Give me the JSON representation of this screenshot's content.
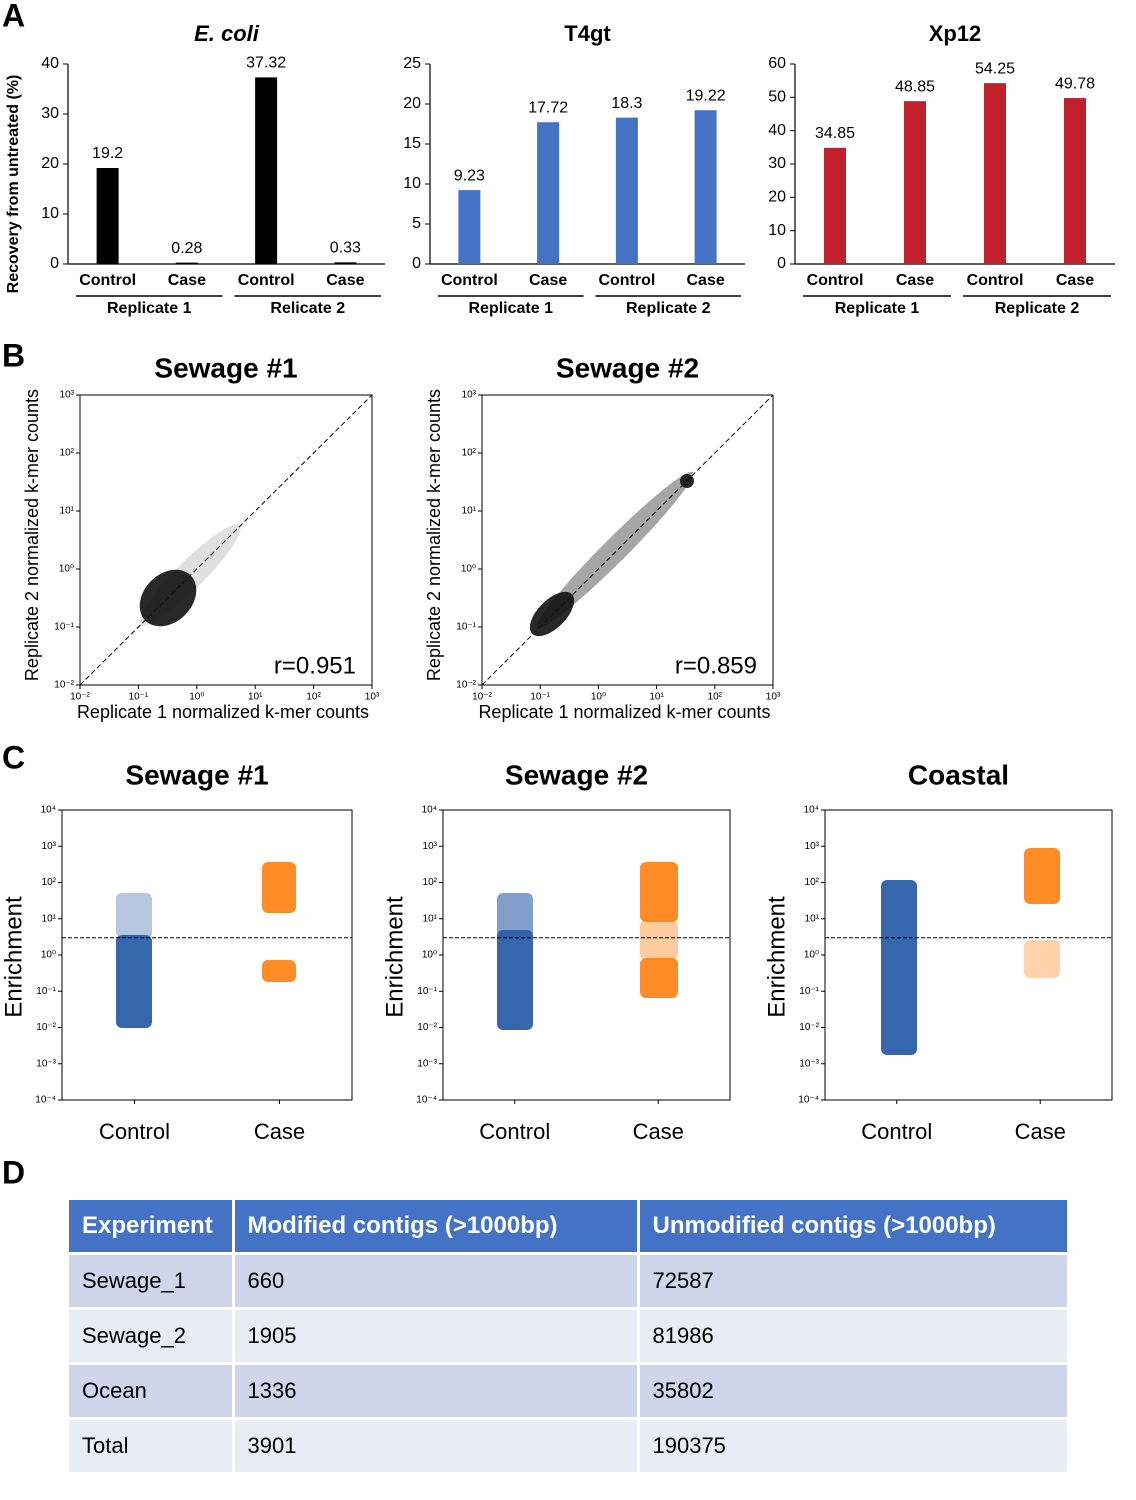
{
  "panel_labels": [
    "A",
    "B",
    "C",
    "D"
  ],
  "chart_data": [
    {
      "type": "bar",
      "title": "E. coli",
      "ylabel": "Recovery from untreated (%)",
      "categories": [
        "Control",
        "Case",
        "Control",
        "Case"
      ],
      "groups": [
        "Replicate 1",
        "Relicate 2"
      ],
      "values": [
        19.2,
        0.28,
        37.32,
        0.33
      ],
      "color": "#000000",
      "ylim": [
        0,
        40
      ],
      "yticks": [
        0,
        10,
        20,
        30,
        40
      ]
    },
    {
      "type": "bar",
      "title": "T4gt",
      "categories": [
        "Control",
        "Case",
        "Control",
        "Case"
      ],
      "groups": [
        "Replicate 1",
        "Replicate 2"
      ],
      "values": [
        9.23,
        17.72,
        18.3,
        19.22
      ],
      "color": "#4472c4",
      "ylim": [
        0,
        25
      ],
      "yticks": [
        0,
        5,
        10,
        15,
        20,
        25
      ]
    },
    {
      "type": "bar",
      "title": "Xp12",
      "categories": [
        "Control",
        "Case",
        "Control",
        "Case"
      ],
      "groups": [
        "Replicate 1",
        "Replicate 2"
      ],
      "values": [
        34.85,
        48.85,
        54.25,
        49.78
      ],
      "color": "#c0202a",
      "ylim": [
        0,
        60
      ],
      "yticks": [
        0,
        10,
        20,
        30,
        40,
        50,
        60
      ]
    },
    {
      "type": "scatter",
      "title": "Sewage #1",
      "xlabel": "Replicate 1 normalized k-mer counts",
      "ylabel": "Replicate 2 normalized k-mer counts",
      "log": true,
      "annotation": "r=0.951",
      "xlim": [
        0.01,
        1000
      ],
      "ylim": [
        0.01,
        1000
      ],
      "xticks": [
        {
          "value": 0.01,
          "label": "10⁻²"
        },
        {
          "value": 0.1,
          "label": "10⁻¹"
        },
        {
          "value": 1,
          "label": "10⁰"
        },
        {
          "value": 10,
          "label": "10¹"
        },
        {
          "value": 100,
          "label": "10²"
        },
        {
          "value": 1000,
          "label": "10³"
        }
      ],
      "yticks": [
        {
          "value": 0.01,
          "label": "10⁻²"
        },
        {
          "value": 0.1,
          "label": "10⁻¹"
        },
        {
          "value": 1,
          "label": "10⁰"
        },
        {
          "value": 10,
          "label": "10¹"
        },
        {
          "value": 100,
          "label": "10²"
        },
        {
          "value": 1000,
          "label": "10³"
        }
      ]
    },
    {
      "type": "scatter",
      "title": "Sewage #2",
      "xlabel": "Replicate 1 normalized k-mer counts",
      "ylabel": "Replicate 2 normalized k-mer counts",
      "log": true,
      "annotation": "r=0.859",
      "xlim": [
        0.01,
        1000
      ],
      "ylim": [
        0.01,
        1000
      ],
      "xticks": [
        {
          "value": 0.01,
          "label": "10⁻²"
        },
        {
          "value": 0.1,
          "label": "10⁻¹"
        },
        {
          "value": 1,
          "label": "10⁰"
        },
        {
          "value": 10,
          "label": "10¹"
        },
        {
          "value": 100,
          "label": "10²"
        },
        {
          "value": 1000,
          "label": "10³"
        }
      ],
      "yticks": [
        {
          "value": 0.01,
          "label": "10⁻²"
        },
        {
          "value": 0.1,
          "label": "10⁻¹"
        },
        {
          "value": 1,
          "label": "10⁰"
        },
        {
          "value": 10,
          "label": "10¹"
        },
        {
          "value": 100,
          "label": "10²"
        },
        {
          "value": 1000,
          "label": "10³"
        }
      ]
    },
    {
      "type": "strip",
      "title": "Sewage #1",
      "ylabel": "Enrichment",
      "categories": [
        "Control",
        "Case"
      ],
      "log": true,
      "threshold": 3,
      "ylim": [
        0.0001,
        10000
      ],
      "yticks": [
        {
          "value": 0.0001,
          "label": "10⁻⁴"
        },
        {
          "value": 0.001,
          "label": "10⁻³"
        },
        {
          "value": 0.01,
          "label": "10⁻²"
        },
        {
          "value": 0.1,
          "label": "10⁻¹"
        },
        {
          "value": 1,
          "label": "10⁰"
        },
        {
          "value": 10,
          "label": "10¹"
        },
        {
          "value": 100,
          "label": "10²"
        },
        {
          "value": 1000,
          "label": "10³"
        },
        {
          "value": 10000,
          "label": "10⁴"
        }
      ]
    },
    {
      "type": "strip",
      "title": "Sewage #2",
      "ylabel": "Enrichment",
      "categories": [
        "Control",
        "Case"
      ],
      "log": true,
      "threshold": 3,
      "ylim": [
        0.0001,
        10000
      ],
      "yticks": [
        {
          "value": 0.0001,
          "label": "10⁻⁴"
        },
        {
          "value": 0.001,
          "label": "10⁻³"
        },
        {
          "value": 0.01,
          "label": "10⁻²"
        },
        {
          "value": 0.1,
          "label": "10⁻¹"
        },
        {
          "value": 1,
          "label": "10⁰"
        },
        {
          "value": 10,
          "label": "10¹"
        },
        {
          "value": 100,
          "label": "10²"
        },
        {
          "value": 1000,
          "label": "10³"
        },
        {
          "value": 10000,
          "label": "10⁴"
        }
      ]
    },
    {
      "type": "strip",
      "title": "Coastal",
      "ylabel": "Enrichment",
      "categories": [
        "Control",
        "Case"
      ],
      "log": true,
      "threshold": 3,
      "ylim": [
        0.0001,
        10000
      ],
      "yticks": [
        {
          "value": 0.0001,
          "label": "10⁻⁴"
        },
        {
          "value": 0.001,
          "label": "10⁻³"
        },
        {
          "value": 0.01,
          "label": "10⁻²"
        },
        {
          "value": 0.1,
          "label": "10⁻¹"
        },
        {
          "value": 1,
          "label": "10⁰"
        },
        {
          "value": 10,
          "label": "10¹"
        },
        {
          "value": 100,
          "label": "10²"
        },
        {
          "value": 1000,
          "label": "10³"
        },
        {
          "value": 10000,
          "label": "10⁴"
        }
      ]
    }
  ],
  "table": {
    "header": [
      "Experiment",
      "Modified contigs (>1000bp)",
      "Unmodified contigs (>1000bp)"
    ],
    "rows": [
      [
        "Sewage_1",
        660,
        72587
      ],
      [
        "Sewage_2",
        1905,
        81986
      ],
      [
        "Ocean",
        1336,
        35802
      ],
      [
        "Total",
        3901,
        190375
      ]
    ]
  }
}
